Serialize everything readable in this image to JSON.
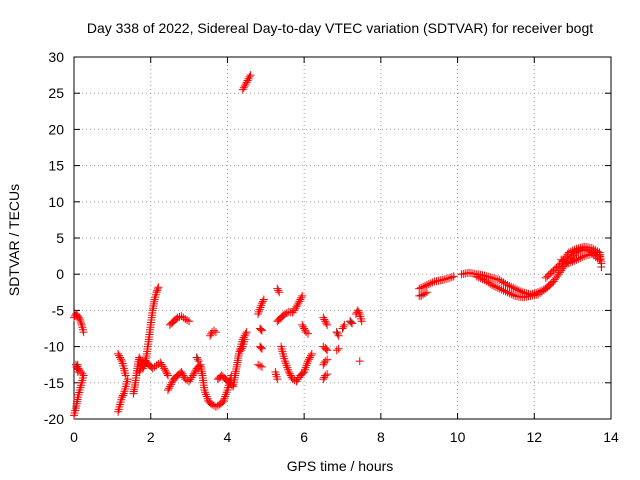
{
  "chart_data": {
    "type": "scatter",
    "title": "Day 338 of 2022, Sidereal Day-to-day VTEC variation (SDTVAR) for receiver bogt",
    "xlabel": "GPS time / hours",
    "ylabel": "SDTVAR / TECUs",
    "xlim": [
      0,
      14
    ],
    "ylim": [
      -20,
      30
    ],
    "xticks": [
      0,
      2,
      4,
      6,
      8,
      10,
      12,
      14
    ],
    "yticks": [
      -20,
      -15,
      -10,
      -5,
      0,
      5,
      10,
      15,
      20,
      25,
      30
    ],
    "grid": true,
    "marker": "+",
    "marker_color": "#ff0000",
    "dark_marker_color": "#a02020",
    "segments": [
      {
        "name": "s1",
        "points": [
          [
            0.0,
            -6.0
          ],
          [
            0.05,
            -5.5
          ],
          [
            0.1,
            -5.8
          ],
          [
            0.15,
            -6.2
          ],
          [
            0.2,
            -7.0
          ],
          [
            0.25,
            -8.0
          ]
        ]
      },
      {
        "name": "s2",
        "points": [
          [
            0.0,
            -19.5
          ],
          [
            0.05,
            -18.5
          ],
          [
            0.1,
            -17.0
          ],
          [
            0.15,
            -16.0
          ],
          [
            0.2,
            -15.0
          ],
          [
            0.25,
            -14.0
          ],
          [
            0.05,
            -12.5
          ],
          [
            0.1,
            -13.5
          ]
        ]
      },
      {
        "name": "s3",
        "points": [
          [
            1.15,
            -11.0
          ],
          [
            1.2,
            -11.5
          ],
          [
            1.25,
            -12.0
          ],
          [
            1.3,
            -13.0
          ],
          [
            1.35,
            -14.0
          ]
        ]
      },
      {
        "name": "s4",
        "points": [
          [
            1.15,
            -19.0
          ],
          [
            1.2,
            -18.0
          ],
          [
            1.25,
            -17.0
          ],
          [
            1.3,
            -16.5
          ],
          [
            1.35,
            -15.5
          ],
          [
            1.4,
            -14.5
          ]
        ]
      },
      {
        "name": "s5",
        "points": [
          [
            1.55,
            -16.5
          ],
          [
            1.6,
            -15.0
          ],
          [
            1.65,
            -13.0
          ],
          [
            1.7,
            -11.5
          ],
          [
            1.75,
            -12.0
          ],
          [
            1.8,
            -13.0
          ],
          [
            1.85,
            -12.5
          ],
          [
            1.9,
            -11.0
          ],
          [
            1.95,
            -9.0
          ],
          [
            2.0,
            -7.0
          ],
          [
            2.05,
            -5.0
          ],
          [
            2.1,
            -3.5
          ],
          [
            2.15,
            -2.5
          ],
          [
            2.2,
            -1.8
          ]
        ]
      },
      {
        "name": "s6",
        "points": [
          [
            1.7,
            -13.5
          ],
          [
            1.75,
            -12.8
          ],
          [
            1.85,
            -12.0
          ],
          [
            1.95,
            -12.5
          ],
          [
            2.05,
            -13.0
          ],
          [
            2.15,
            -12.6
          ],
          [
            2.25,
            -12.2
          ],
          [
            2.35,
            -13.0
          ],
          [
            2.45,
            -14.0
          ]
        ]
      },
      {
        "name": "s7",
        "points": [
          [
            2.45,
            -16.0
          ],
          [
            2.5,
            -15.5
          ],
          [
            2.55,
            -15.0
          ],
          [
            2.6,
            -14.5
          ],
          [
            2.7,
            -14.0
          ],
          [
            2.8,
            -13.5
          ],
          [
            2.9,
            -14.5
          ],
          [
            3.0,
            -14.8
          ],
          [
            3.1,
            -14.0
          ],
          [
            3.2,
            -13.0
          ],
          [
            3.3,
            -12.5
          ],
          [
            3.35,
            -14.0
          ],
          [
            3.4,
            -16.0
          ],
          [
            3.5,
            -17.5
          ],
          [
            3.6,
            -18.0
          ],
          [
            3.7,
            -18.3
          ],
          [
            3.8,
            -18.0
          ],
          [
            3.9,
            -17.5
          ],
          [
            4.0,
            -16.0
          ],
          [
            4.1,
            -14.0
          ]
        ]
      },
      {
        "name": "s8",
        "points": [
          [
            2.5,
            -7.0
          ],
          [
            2.6,
            -6.5
          ],
          [
            2.7,
            -6.0
          ],
          [
            2.8,
            -5.8
          ],
          [
            2.9,
            -6.2
          ],
          [
            3.0,
            -6.5
          ]
        ]
      },
      {
        "name": "s9",
        "points": [
          [
            3.2,
            -11.5
          ],
          [
            3.25,
            -12.0
          ]
        ]
      },
      {
        "name": "s10",
        "points": [
          [
            3.55,
            -8.5
          ],
          [
            3.6,
            -8.0
          ],
          [
            3.65,
            -7.8
          ],
          [
            3.7,
            -8.0
          ]
        ]
      },
      {
        "name": "s11",
        "points": [
          [
            3.75,
            -14.5
          ],
          [
            3.85,
            -14.0
          ],
          [
            3.95,
            -14.5
          ],
          [
            4.05,
            -15.0
          ],
          [
            4.15,
            -15.5
          ],
          [
            4.2,
            -14.0
          ],
          [
            4.25,
            -12.5
          ],
          [
            4.3,
            -11.0
          ],
          [
            4.35,
            -10.0
          ],
          [
            4.4,
            -9.0
          ],
          [
            4.45,
            -8.5
          ],
          [
            4.5,
            -8.0
          ]
        ]
      },
      {
        "name": "s12",
        "points": [
          [
            4.35,
            -10.5
          ],
          [
            4.4,
            -10.0
          ],
          [
            4.45,
            -9.0
          ]
        ]
      },
      {
        "name": "s13",
        "points": [
          [
            4.4,
            25.5
          ],
          [
            4.45,
            26.0
          ],
          [
            4.5,
            26.5
          ],
          [
            4.55,
            27.0
          ],
          [
            4.6,
            27.5
          ]
        ]
      },
      {
        "name": "s14",
        "points": [
          [
            4.8,
            -12.5
          ],
          [
            4.9,
            -12.8
          ]
        ]
      },
      {
        "name": "s15",
        "points": [
          [
            4.8,
            -5.5
          ],
          [
            4.9,
            -4.0
          ],
          [
            4.95,
            -3.5
          ]
        ]
      },
      {
        "name": "s16",
        "points": [
          [
            4.85,
            -7.5
          ],
          [
            4.9,
            -7.8
          ]
        ]
      },
      {
        "name": "s17",
        "points": [
          [
            4.85,
            -10.0
          ],
          [
            4.9,
            -10.3
          ]
        ]
      },
      {
        "name": "s18",
        "points": [
          [
            5.3,
            -2.0
          ],
          [
            5.35,
            -2.5
          ]
        ]
      },
      {
        "name": "s19",
        "points": [
          [
            5.25,
            -13.5
          ],
          [
            5.3,
            -14.5
          ]
        ]
      },
      {
        "name": "s20",
        "points": [
          [
            5.3,
            -6.5
          ],
          [
            5.4,
            -6.0
          ],
          [
            5.5,
            -5.5
          ],
          [
            5.6,
            -5.2
          ],
          [
            5.7,
            -5.3
          ],
          [
            5.8,
            -4.5
          ],
          [
            5.9,
            -3.5
          ],
          [
            5.95,
            -3.0
          ]
        ]
      },
      {
        "name": "s21",
        "points": [
          [
            5.4,
            -10.0
          ],
          [
            5.5,
            -12.0
          ],
          [
            5.6,
            -13.5
          ],
          [
            5.7,
            -14.5
          ],
          [
            5.8,
            -14.8
          ],
          [
            5.9,
            -14.0
          ],
          [
            6.0,
            -13.5
          ],
          [
            6.1,
            -12.0
          ],
          [
            6.2,
            -11.0
          ]
        ]
      },
      {
        "name": "s22",
        "points": [
          [
            5.95,
            -7.0
          ],
          [
            6.0,
            -7.5
          ],
          [
            6.05,
            -8.0
          ],
          [
            6.1,
            -8.2
          ]
        ]
      },
      {
        "name": "s23",
        "points": [
          [
            6.5,
            -6.0
          ],
          [
            6.55,
            -6.5
          ],
          [
            6.6,
            -7.0
          ]
        ]
      },
      {
        "name": "s24",
        "points": [
          [
            6.5,
            -10.0
          ],
          [
            6.55,
            -10.2
          ],
          [
            6.6,
            -10.5
          ]
        ]
      },
      {
        "name": "s25",
        "points": [
          [
            6.5,
            -14.5
          ],
          [
            6.55,
            -14.0
          ],
          [
            6.6,
            -13.8
          ]
        ]
      },
      {
        "name": "s26",
        "points": [
          [
            6.5,
            -12.5
          ],
          [
            6.55,
            -12.0
          ],
          [
            6.6,
            -11.8
          ]
        ]
      },
      {
        "name": "s27",
        "points": [
          [
            6.85,
            -8.0
          ],
          [
            6.9,
            -8.5
          ]
        ]
      },
      {
        "name": "s28",
        "points": [
          [
            6.85,
            -10.5
          ],
          [
            6.9,
            -10.3
          ]
        ]
      },
      {
        "name": "s29",
        "points": [
          [
            7.0,
            -7.5
          ],
          [
            7.05,
            -7.0
          ]
        ]
      },
      {
        "name": "s30",
        "points": [
          [
            7.2,
            -6.5
          ],
          [
            7.25,
            -6.8
          ]
        ]
      },
      {
        "name": "s31",
        "points": [
          [
            7.35,
            -5.5
          ],
          [
            7.4,
            -5.0
          ],
          [
            7.45,
            -5.5
          ],
          [
            7.5,
            -6.5
          ]
        ]
      },
      {
        "name": "s32",
        "points": [
          [
            7.45,
            -12.0
          ]
        ]
      },
      {
        "name": "s33",
        "points": [
          [
            9.0,
            -2.0
          ],
          [
            9.2,
            -1.5
          ],
          [
            9.4,
            -1.0
          ],
          [
            9.6,
            -0.8
          ],
          [
            9.8,
            -0.5
          ],
          [
            9.9,
            -0.3
          ]
        ]
      },
      {
        "name": "s34",
        "points": [
          [
            9.0,
            -3.0
          ],
          [
            9.1,
            -2.8
          ],
          [
            9.2,
            -2.5
          ]
        ]
      },
      {
        "name": "s35",
        "points": [
          [
            10.1,
            0.0
          ],
          [
            10.3,
            0.2
          ],
          [
            10.5,
            0.0
          ],
          [
            10.7,
            -0.2
          ],
          [
            10.9,
            -0.5
          ],
          [
            11.1,
            -0.8
          ],
          [
            11.3,
            -1.5
          ],
          [
            11.5,
            -2.0
          ],
          [
            11.7,
            -2.5
          ],
          [
            11.9,
            -2.8
          ],
          [
            12.1,
            -2.5
          ],
          [
            12.3,
            -2.0
          ],
          [
            12.5,
            -1.0
          ],
          [
            12.7,
            0.5
          ],
          [
            12.9,
            2.0
          ],
          [
            13.1,
            3.0
          ],
          [
            13.3,
            3.5
          ],
          [
            13.5,
            3.0
          ],
          [
            13.7,
            2.5
          ]
        ]
      },
      {
        "name": "s36",
        "points": [
          [
            10.5,
            -0.3
          ],
          [
            10.7,
            -0.8
          ],
          [
            10.9,
            -1.5
          ],
          [
            11.1,
            -2.0
          ],
          [
            11.3,
            -2.5
          ],
          [
            11.5,
            -3.0
          ],
          [
            11.7,
            -3.2
          ],
          [
            11.9,
            -3.0
          ],
          [
            12.1,
            -2.8
          ],
          [
            12.3,
            -2.0
          ],
          [
            12.5,
            -1.0
          ]
        ]
      },
      {
        "name": "s37",
        "points": [
          [
            12.3,
            -0.5
          ],
          [
            12.5,
            0.5
          ],
          [
            12.7,
            1.5
          ],
          [
            12.9,
            3.0
          ],
          [
            13.1,
            3.5
          ],
          [
            13.3,
            3.8
          ],
          [
            13.5,
            3.6
          ],
          [
            13.7,
            3.0
          ],
          [
            13.75,
            1.5
          ]
        ]
      },
      {
        "name": "s38",
        "points": [
          [
            12.7,
            2.0
          ],
          [
            12.9,
            1.5
          ],
          [
            13.1,
            2.0
          ],
          [
            13.3,
            2.5
          ],
          [
            13.5,
            2.8
          ],
          [
            13.7,
            2.0
          ]
        ]
      },
      {
        "name": "s39",
        "points": [
          [
            13.75,
            1.0
          ]
        ]
      }
    ]
  }
}
